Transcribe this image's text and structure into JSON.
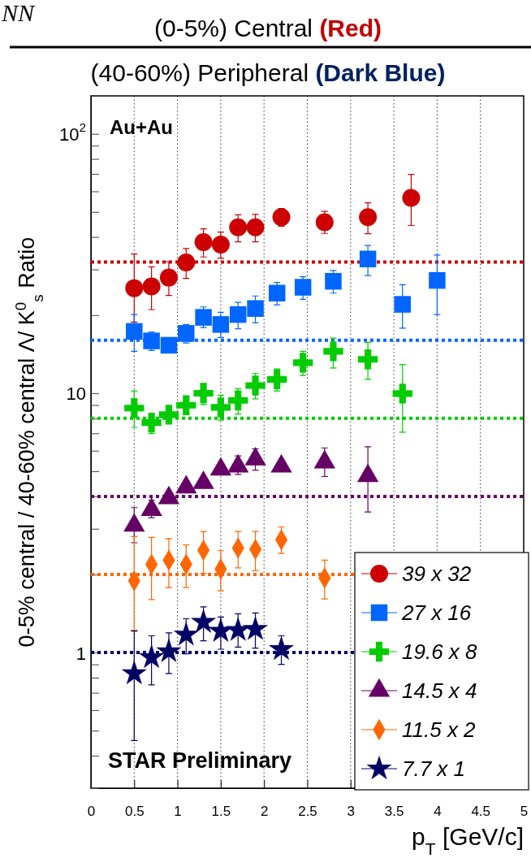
{
  "chart_data": {
    "type": "scatter",
    "title": "(0-5%) Central (Red)",
    "subtitle": "(40-60%) Peripheral (Dark Blue)",
    "xlabel": "p$_{T}$ [GeV/c]",
    "ylabel": "0-5% central / 40-60% central Λ/ K$^{0}$$_{s}$ Ratio",
    "annotations": [
      "NN",
      "Au+Au",
      "STAR Preliminary"
    ],
    "xlim": [
      0,
      5
    ],
    "xticks": [
      0,
      0.5,
      1,
      1.5,
      2,
      2.5,
      3,
      3.5,
      4,
      4.5,
      5
    ],
    "ylim": [
      0.3,
      140
    ],
    "yticks": [
      {
        "value": 0.3,
        "label": null
      },
      {
        "value": 0.4,
        "label": null
      },
      {
        "value": 0.5,
        "label": null
      },
      {
        "value": 0.6,
        "label": null
      },
      {
        "value": 0.7,
        "label": null
      },
      {
        "value": 0.8,
        "label": null
      },
      {
        "value": 0.9,
        "label": null
      },
      1,
      {
        "value": 2,
        "label": null
      },
      {
        "value": 3,
        "label": null
      },
      {
        "value": 4,
        "label": null
      },
      {
        "value": 5,
        "label": null
      },
      {
        "value": 6,
        "label": null
      },
      {
        "value": 7,
        "label": null
      },
      {
        "value": 8,
        "label": null
      },
      {
        "value": 9,
        "label": null
      },
      10,
      {
        "value": 20,
        "label": null
      },
      {
        "value": 30,
        "label": null
      },
      {
        "value": 40,
        "label": null
      },
      {
        "value": 50,
        "label": null
      },
      {
        "value": 60,
        "label": null
      },
      {
        "value": 70,
        "label": null
      },
      {
        "value": 80,
        "label": null
      },
      {
        "value": 90,
        "label": null
      },
      {
        "value": 100,
        "label": "10$^{2}$"
      }
    ],
    "log": true,
    "grid": "x",
    "legend": "bottom right",
    "ref_lines": [
      {
        "axis": "y",
        "value": 32,
        "color": "#cc0000",
        "line_style": "dotted"
      },
      {
        "axis": "y",
        "value": 16,
        "color": "#0066ff",
        "line_style": "dotted"
      },
      {
        "axis": "y",
        "value": 8,
        "color": "#00cc00",
        "line_style": "dotted"
      },
      {
        "axis": "y",
        "value": 4,
        "color": "#660066",
        "line_style": "dotted"
      },
      {
        "axis": "y",
        "value": 2,
        "color": "#ff6600",
        "line_style": "dotted"
      },
      {
        "axis": "y",
        "value": 1,
        "color": "#000066",
        "line_style": "dotted"
      }
    ],
    "series": [
      {
        "name": "39 x 32",
        "color": "#cc0000",
        "marker": "circle",
        "x": [
          0.5,
          0.7,
          0.9,
          1.1,
          1.3,
          1.5,
          1.7,
          1.9,
          2.2,
          2.7,
          3.2,
          3.7
        ],
        "values": [
          25.4,
          25.8,
          27.9,
          31.9,
          38.2,
          37.4,
          43.6,
          43.6,
          47.7,
          45.6,
          47.7,
          56.6
        ],
        "errors": [
          [
            18.8,
            34.4
          ],
          [
            21.0,
            30.7
          ],
          [
            23.8,
            32.1
          ],
          [
            27.7,
            36.1
          ],
          [
            33.5,
            43.0
          ],
          [
            33.1,
            41.8
          ],
          [
            38.3,
            48.7
          ],
          [
            38.3,
            48.9
          ],
          [
            44.0,
            51.5
          ],
          [
            41.3,
            50.2
          ],
          [
            41.2,
            54.2
          ],
          [
            44.3,
            69.7
          ]
        ]
      },
      {
        "name": "27 x 16",
        "color": "#0066ff",
        "marker": "square",
        "x": [
          0.5,
          0.7,
          0.9,
          1.1,
          1.3,
          1.5,
          1.7,
          1.9,
          2.15,
          2.45,
          2.8,
          3.2,
          3.6,
          4.0
        ],
        "values": [
          17.3,
          15.9,
          15.3,
          17.0,
          19.6,
          18.4,
          20.1,
          21.2,
          24.3,
          25.6,
          27.0,
          32.9,
          22.0,
          27.2
        ],
        "errors": [
          [
            14.5,
            20.1
          ],
          [
            14.6,
            17.2
          ],
          null,
          [
            15.6,
            18.4
          ],
          [
            17.9,
            21.5
          ],
          [
            16.4,
            20.5
          ],
          [
            17.7,
            22.4
          ],
          [
            18.7,
            23.7
          ],
          [
            21.9,
            26.7
          ],
          [
            23.0,
            28.1
          ],
          [
            24.3,
            29.7
          ],
          [
            28.4,
            37.1
          ],
          [
            17.8,
            26.2
          ],
          [
            20.1,
            34.1
          ]
        ]
      },
      {
        "name": "19.6 x 8",
        "color": "#00cc00",
        "marker": "cross",
        "x": [
          0.5,
          0.7,
          0.9,
          1.1,
          1.3,
          1.5,
          1.7,
          1.9,
          2.15,
          2.45,
          2.8,
          3.2,
          3.6
        ],
        "values": [
          8.76,
          7.7,
          8.26,
          8.98,
          9.99,
          8.81,
          9.38,
          10.7,
          11.3,
          13.1,
          14.5,
          13.5,
          9.96
        ],
        "errors": [
          [
            7.38,
            10.2
          ],
          [
            6.98,
            8.3
          ],
          [
            7.66,
            8.85
          ],
          [
            8.26,
            9.67
          ],
          [
            9.04,
            10.9
          ],
          [
            7.86,
            9.82
          ],
          [
            8.3,
            10.4
          ],
          [
            9.51,
            11.9
          ],
          [
            10.2,
            12.4
          ],
          [
            11.7,
            14.5
          ],
          [
            12.5,
            16.3
          ],
          [
            11.3,
            15.7
          ],
          [
            7.07,
            12.9
          ]
        ]
      },
      {
        "name": "14.5 x 4",
        "color": "#660066",
        "marker": "triangle",
        "x": [
          0.5,
          0.7,
          0.9,
          1.1,
          1.3,
          1.5,
          1.7,
          1.9,
          2.2,
          2.7,
          3.2
        ],
        "values": [
          3.09,
          3.55,
          3.94,
          4.34,
          4.51,
          5.08,
          5.22,
          5.56,
          5.22,
          5.42,
          4.8
        ],
        "errors": [
          [
            2.65,
            3.62
          ],
          [
            3.31,
            3.87
          ],
          null,
          null,
          null,
          null,
          [
            4.86,
            5.73
          ],
          [
            5.05,
            6.1
          ],
          null,
          [
            4.77,
            6.15
          ],
          [
            3.48,
            6.21
          ]
        ]
      },
      {
        "name": "11.5 x 2",
        "color": "#ff6600",
        "marker": "diamond",
        "x": [
          0.5,
          0.7,
          0.9,
          1.1,
          1.3,
          1.5,
          1.7,
          1.9,
          2.2,
          2.7
        ],
        "values": [
          1.89,
          2.19,
          2.27,
          2.19,
          2.48,
          2.1,
          2.53,
          2.5,
          2.72,
          1.94
        ],
        "errors": [
          [
            1.22,
            2.8
          ],
          [
            1.6,
            2.78
          ],
          [
            1.78,
            2.75
          ],
          [
            1.78,
            2.6
          ],
          [
            2.02,
            2.93
          ],
          [
            1.73,
            2.47
          ],
          [
            2.12,
            2.93
          ],
          [
            2.07,
            2.93
          ],
          [
            2.41,
            3.05
          ],
          [
            1.61,
            2.27
          ]
        ]
      },
      {
        "name": "7.7 x 1",
        "color": "#000066",
        "marker": "star",
        "x": [
          0.5,
          0.7,
          0.9,
          1.1,
          1.3,
          1.5,
          1.7,
          1.9,
          2.2
        ],
        "values": [
          0.83,
          0.958,
          1.01,
          1.17,
          1.31,
          1.21,
          1.22,
          1.23,
          1.03
        ],
        "errors": [
          [
            0.458,
            1.21
          ],
          [
            0.75,
            1.16
          ],
          [
            0.83,
            1.19
          ],
          [
            0.988,
            1.35
          ],
          [
            1.11,
            1.5
          ],
          [
            1.03,
            1.37
          ],
          [
            1.05,
            1.41
          ],
          [
            1.04,
            1.42
          ],
          [
            0.9,
            1.16
          ]
        ]
      }
    ]
  }
}
